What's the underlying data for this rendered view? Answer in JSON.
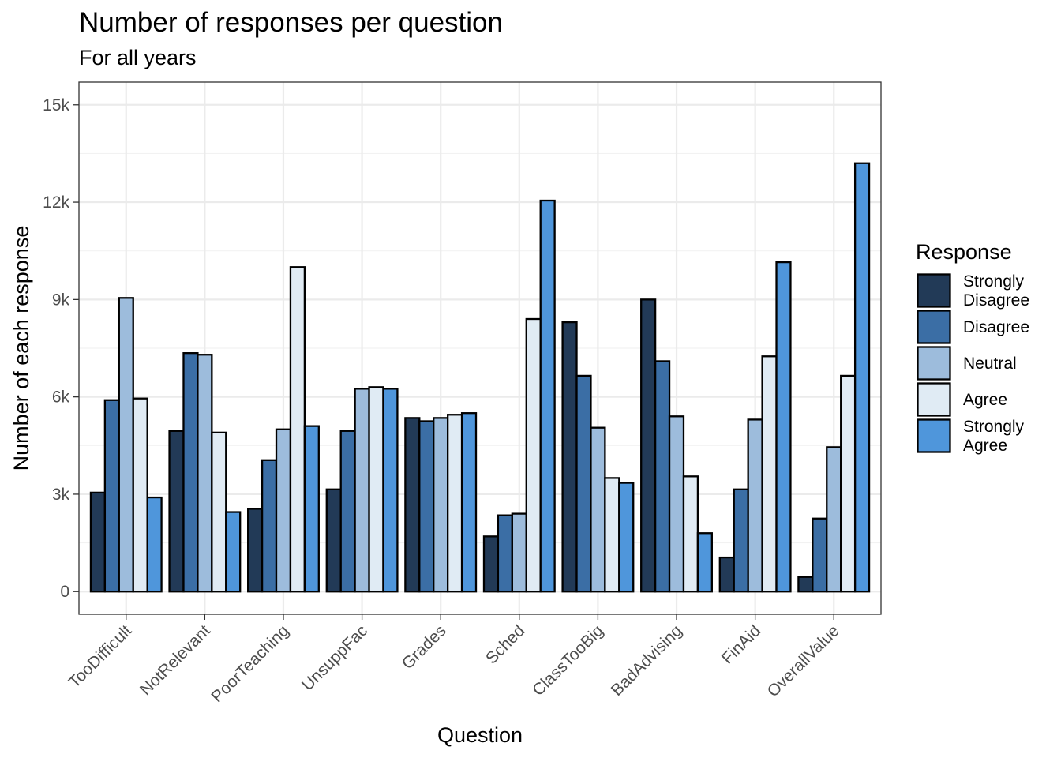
{
  "chart_data": {
    "type": "bar",
    "title": "Number of responses per question",
    "subtitle": "For all years",
    "xlabel": "Question",
    "ylabel": "Number of each response",
    "ylim": [
      -700,
      15700
    ],
    "y_ticks": [
      0,
      3000,
      6000,
      9000,
      12000,
      15000
    ],
    "y_tick_labels": [
      "0",
      "3k",
      "6k",
      "9k",
      "12k",
      "15k"
    ],
    "grid": true,
    "legend_position": "right",
    "legend_title": "Response",
    "categories": [
      "TooDifficult",
      "NotRelevant",
      "PoorTeaching",
      "UnsuppFac",
      "Grades",
      "Sched",
      "ClassTooBig",
      "BadAdvising",
      "FinAid",
      "OverallValue"
    ],
    "series": [
      {
        "name": "Strongly Disagree",
        "legend_lines": [
          "Strongly",
          "Disagree"
        ],
        "color": "#223a57",
        "values": [
          3050,
          4950,
          2550,
          3150,
          5350,
          1700,
          8300,
          9000,
          1050,
          450
        ]
      },
      {
        "name": "Disagree",
        "legend_lines": [
          "Disagree"
        ],
        "color": "#3b6ea5",
        "values": [
          5900,
          7350,
          4050,
          4950,
          5250,
          2350,
          6650,
          7100,
          3150,
          2250
        ]
      },
      {
        "name": "Neutral",
        "legend_lines": [
          "Neutral"
        ],
        "color": "#9dbcdc",
        "values": [
          9050,
          7300,
          5000,
          6250,
          5350,
          2400,
          5050,
          5400,
          5300,
          4450
        ]
      },
      {
        "name": "Agree",
        "legend_lines": [
          "Agree"
        ],
        "color": "#e0ebf4",
        "values": [
          5950,
          4900,
          10000,
          6300,
          5450,
          8400,
          3500,
          3550,
          7250,
          6650
        ]
      },
      {
        "name": "Strongly Agree",
        "legend_lines": [
          "Strongly",
          "Agree"
        ],
        "color": "#4f96db",
        "values": [
          2900,
          2450,
          5100,
          6250,
          5500,
          12050,
          3350,
          1800,
          10150,
          13200
        ]
      }
    ]
  }
}
